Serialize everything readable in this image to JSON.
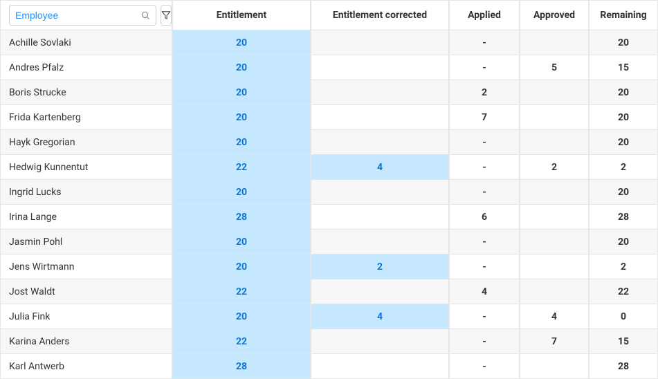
{
  "search": {
    "placeholder": "Employee",
    "value": ""
  },
  "columns": {
    "employee": "Employee",
    "entitlement": "Entitlement",
    "corrected": "Entitlement corrected",
    "applied": "Applied",
    "approved": "Approved",
    "remaining": "Remaining"
  },
  "colors": {
    "highlight_bg": "#c5e8ff",
    "highlight_text": "#0b75d6",
    "row_alt_bg": "#f7f7f7",
    "border": "#e5e5e5",
    "link": "#1e90ff"
  },
  "rows": [
    {
      "name": "Achille Sovlaki",
      "entitlement": "20",
      "corrected": "",
      "applied": "-",
      "approved": "",
      "remaining": "20"
    },
    {
      "name": "Andres Pfalz",
      "entitlement": "20",
      "corrected": "",
      "applied": "-",
      "approved": "5",
      "remaining": "15"
    },
    {
      "name": "Boris Strucke",
      "entitlement": "20",
      "corrected": "",
      "applied": "2",
      "approved": "",
      "remaining": "20"
    },
    {
      "name": "Frida Kartenberg",
      "entitlement": "20",
      "corrected": "",
      "applied": "7",
      "approved": "",
      "remaining": "20"
    },
    {
      "name": "Hayk Gregorian",
      "entitlement": "20",
      "corrected": "",
      "applied": "-",
      "approved": "",
      "remaining": "20"
    },
    {
      "name": "Hedwig Kunnentut",
      "entitlement": "22",
      "corrected": "4",
      "applied": "-",
      "approved": "2",
      "remaining": "2"
    },
    {
      "name": "Ingrid Lucks",
      "entitlement": "20",
      "corrected": "",
      "applied": "-",
      "approved": "",
      "remaining": "20"
    },
    {
      "name": "Irina Lange",
      "entitlement": "28",
      "corrected": "",
      "applied": "6",
      "approved": "",
      "remaining": "28"
    },
    {
      "name": "Jasmin Pohl",
      "entitlement": "20",
      "corrected": "",
      "applied": "-",
      "approved": "",
      "remaining": "20"
    },
    {
      "name": "Jens Wirtmann",
      "entitlement": "20",
      "corrected": "2",
      "applied": "-",
      "approved": "",
      "remaining": "2"
    },
    {
      "name": "Jost Waldt",
      "entitlement": "22",
      "corrected": "",
      "applied": "4",
      "approved": "",
      "remaining": "22"
    },
    {
      "name": "Julia Fink",
      "entitlement": "20",
      "corrected": "4",
      "applied": "-",
      "approved": "4",
      "remaining": "0"
    },
    {
      "name": "Karina Anders",
      "entitlement": "22",
      "corrected": "",
      "applied": "-",
      "approved": "7",
      "remaining": "15"
    },
    {
      "name": "Karl Antwerb",
      "entitlement": "28",
      "corrected": "",
      "applied": "-",
      "approved": "",
      "remaining": "28"
    }
  ]
}
